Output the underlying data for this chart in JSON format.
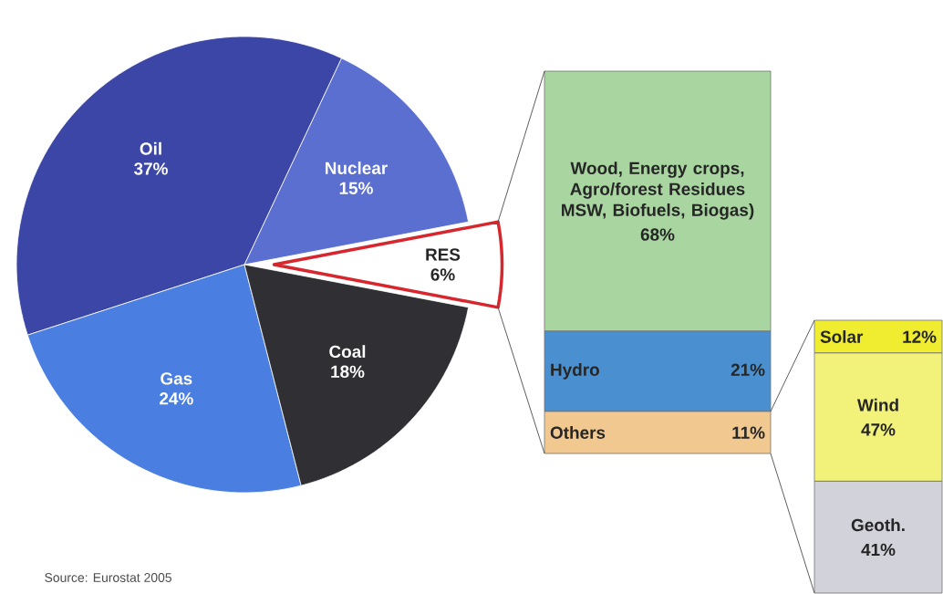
{
  "chart_data": [
    {
      "type": "pie",
      "categories": [
        "RES",
        "Nuclear",
        "Oil",
        "Gas",
        "Coal"
      ],
      "values": [
        6,
        15,
        37,
        24,
        18
      ],
      "colors": [
        "#ffffff",
        "#5a6fcf",
        "#3b46a6",
        "#4a7ee0",
        "#2f2f34"
      ],
      "value_labels": [
        "6%",
        "15%",
        "37%",
        "24%",
        "18%"
      ],
      "annotations": [
        "Source: Eurostat 2005"
      ]
    },
    {
      "type": "bar",
      "stacked": true,
      "categories": [
        null
      ],
      "series": [
        {
          "name": "Others",
          "color": "#f0c890",
          "values": [
            11
          ],
          "value_labels": [
            "11%"
          ]
        },
        {
          "name": "Hydro",
          "color": "#4a90d0",
          "values": [
            21
          ],
          "value_labels": [
            "21%"
          ]
        },
        {
          "name": "Wood, Energy crops, Agro/forest Residues MSW, Biofuels, Biogas)",
          "color": "#a8d5a0",
          "values": [
            68
          ],
          "value_labels": [
            "68%"
          ]
        }
      ]
    },
    {
      "type": "bar",
      "stacked": true,
      "categories": [
        null
      ],
      "series": [
        {
          "name": "Geoth.",
          "color": "#d2d2da",
          "values": [
            41
          ],
          "value_labels": [
            "41%"
          ]
        },
        {
          "name": "Wind",
          "color": "#f2f27a",
          "values": [
            47
          ],
          "value_labels": [
            "47%"
          ]
        },
        {
          "name": "Solar",
          "color": "#f0ec30",
          "values": [
            12
          ],
          "value_labels": [
            "12%"
          ]
        }
      ]
    }
  ]
}
